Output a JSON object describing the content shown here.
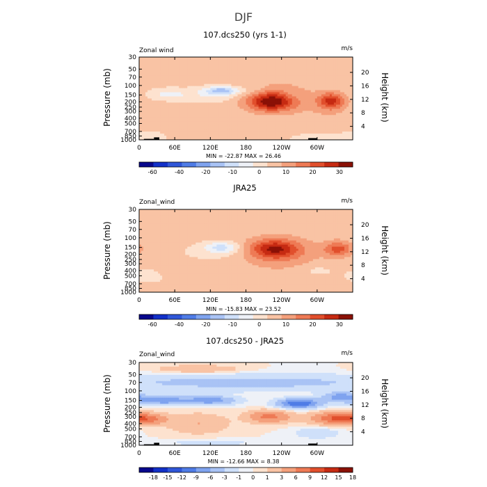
{
  "suptitle": "DJF",
  "colors": {
    "standard": [
      "#08088c",
      "#1230c8",
      "#2f56d8",
      "#4f7ce6",
      "#7fa3ef",
      "#a9c3f5",
      "#cfe0fa",
      "#eef1f7",
      "#fde2cf",
      "#f9c3a4",
      "#f4a07c",
      "#ee7a55",
      "#e14f2c",
      "#c62a12",
      "#8a1106"
    ],
    "diff": [
      "#08088c",
      "#1230c8",
      "#2f56d8",
      "#4f7ce6",
      "#7fa3ef",
      "#a9c3f5",
      "#cfe0fa",
      "#eef1f7",
      "#fde2cf",
      "#f9c3a4",
      "#f4a07c",
      "#ee7a55",
      "#e14f2c",
      "#c62a12",
      "#8a1106"
    ],
    "topo": "#000000",
    "contour_line": "#ffffff"
  },
  "chart_data": [
    {
      "type": "heatmap",
      "title": "107.dcs250 (yrs 1-1)",
      "left_label": "Zonal wind",
      "units": "m/s",
      "ylabel": "Pressure (mb)",
      "ylabel_right": "Height (km)",
      "x_ticks": [
        "0",
        "60E",
        "120E",
        "180",
        "120W",
        "60W"
      ],
      "x_tick_lon": [
        0,
        60,
        120,
        180,
        240,
        300
      ],
      "xlim": [
        0,
        360
      ],
      "p_ticks": [
        30,
        50,
        70,
        100,
        150,
        200,
        250,
        300,
        400,
        500,
        700,
        850,
        1000
      ],
      "ylim_mb": [
        30,
        1000
      ],
      "z_ticks": [
        4,
        8,
        12,
        16,
        20
      ],
      "stats": "MIN = -22.87   MAX =  26.46",
      "levels": [
        -60,
        -40,
        -20,
        -10,
        0,
        10,
        20,
        30
      ],
      "bounds": [
        -70,
        -60,
        -50,
        -40,
        -30,
        -20,
        -15,
        -10,
        -5,
        0,
        5,
        10,
        15,
        20,
        25,
        30
      ],
      "colorbar_labels": [
        "-60",
        "-40",
        "-20",
        "-10",
        "0",
        "10",
        "20",
        "30"
      ],
      "base": 1.5,
      "blobs": [
        {
          "lon": 223,
          "p": 200,
          "amp": 24,
          "slon": 27,
          "slog": 0.27
        },
        {
          "lon": 236,
          "p": 160,
          "amp": 6,
          "slon": 45,
          "slog": 0.5
        },
        {
          "lon": 324,
          "p": 190,
          "amp": 19,
          "slon": 16,
          "slog": 0.24
        },
        {
          "lon": 318,
          "p": 280,
          "amp": 3,
          "slon": 25,
          "slog": 0.3
        },
        {
          "lon": 140,
          "p": 125,
          "amp": -18,
          "slon": 20,
          "slog": 0.12
        },
        {
          "lon": 120,
          "p": 150,
          "amp": -6,
          "slon": 35,
          "slog": 0.22
        },
        {
          "lon": 48,
          "p": 145,
          "amp": -8,
          "slon": 22,
          "slog": 0.16
        },
        {
          "lon": 255,
          "p": 160,
          "amp": -3,
          "slon": 12,
          "slog": 0.2
        },
        {
          "lon": 195,
          "p": 120,
          "amp": -3,
          "slon": 15,
          "slog": 0.2
        },
        {
          "lon": 15,
          "p": 850,
          "amp": -3,
          "slon": 30,
          "slog": 0.2
        },
        {
          "lon": 290,
          "p": 930,
          "amp": -3,
          "slon": 30,
          "slog": 0.15
        },
        {
          "lon": 120,
          "p": 780,
          "amp": 3,
          "slon": 40,
          "slog": 0.1
        }
      ],
      "topography": [
        {
          "lon": [
            8,
            25
          ],
          "p": 960
        },
        {
          "lon": [
            25,
            34
          ],
          "p": 900
        },
        {
          "lon": [
            285,
            300
          ],
          "p": 930
        }
      ]
    },
    {
      "type": "heatmap",
      "title": "JRA25",
      "left_label": "Zonal_wind",
      "units": "m/s",
      "ylabel": "Pressure (mb)",
      "ylabel_right": "Height (km)",
      "x_ticks": [
        "0",
        "60E",
        "120E",
        "180",
        "120W",
        "60W"
      ],
      "x_tick_lon": [
        0,
        60,
        120,
        180,
        240,
        300
      ],
      "xlim": [
        0,
        360
      ],
      "p_ticks": [
        30,
        50,
        70,
        100,
        150,
        200,
        250,
        300,
        400,
        500,
        700,
        850,
        1000
      ],
      "ylim_mb": [
        30,
        1000
      ],
      "z_ticks": [
        4,
        8,
        12,
        16,
        20
      ],
      "stats": "MIN = -15.83   MAX =  23.52",
      "levels": [
        -60,
        -40,
        -20,
        -10,
        0,
        10,
        20,
        30
      ],
      "bounds": [
        -70,
        -60,
        -50,
        -40,
        -30,
        -20,
        -15,
        -10,
        -5,
        0,
        5,
        10,
        15,
        20,
        25,
        30
      ],
      "colorbar_labels": [
        "-60",
        "-40",
        "-20",
        "-10",
        "0",
        "10",
        "20",
        "30"
      ],
      "base": 2,
      "blobs": [
        {
          "lon": 228,
          "p": 160,
          "amp": 20,
          "slon": 30,
          "slog": 0.28
        },
        {
          "lon": 236,
          "p": 200,
          "amp": 6,
          "slon": 48,
          "slog": 0.5
        },
        {
          "lon": 335,
          "p": 160,
          "amp": 15,
          "slon": 17,
          "slog": 0.22
        },
        {
          "lon": 140,
          "p": 150,
          "amp": -12,
          "slon": 20,
          "slog": 0.16
        },
        {
          "lon": 130,
          "p": 180,
          "amp": -4,
          "slon": 45,
          "slog": 0.3
        },
        {
          "lon": 15,
          "p": 500,
          "amp": -4,
          "slon": 25,
          "slog": 0.25
        },
        {
          "lon": 300,
          "p": 400,
          "amp": -4,
          "slon": 20,
          "slog": 0.15
        },
        {
          "lon": 90,
          "p": 420,
          "amp": 2,
          "slon": 40,
          "slog": 0.2
        }
      ],
      "topography": []
    },
    {
      "type": "heatmap",
      "title": "107.dcs250 - JRA25",
      "left_label": "Zonal_wind",
      "units": "m/s",
      "ylabel": "Pressure (mb)",
      "ylabel_right": "Height (km)",
      "x_ticks": [
        "0",
        "60E",
        "120E",
        "180",
        "120W",
        "60W"
      ],
      "x_tick_lon": [
        0,
        60,
        120,
        180,
        240,
        300
      ],
      "xlim": [
        0,
        360
      ],
      "p_ticks": [
        30,
        50,
        70,
        100,
        150,
        200,
        250,
        300,
        400,
        500,
        700,
        850,
        1000
      ],
      "ylim_mb": [
        30,
        1000
      ],
      "z_ticks": [
        4,
        8,
        12,
        16,
        20
      ],
      "stats": "MIN = -12.66   MAX =   8.38",
      "levels": [
        -18,
        -15,
        -12,
        -9,
        -6,
        -3,
        -1,
        0,
        1,
        3,
        6,
        9,
        12,
        15,
        18
      ],
      "bounds": [
        -21,
        -18,
        -15,
        -12,
        -9,
        -6,
        -3,
        -1,
        0,
        1,
        3,
        6,
        9,
        12,
        15,
        18
      ],
      "colorbar_labels": [
        "-18",
        "-15",
        "-12",
        "-9",
        "-6",
        "-3",
        "-1",
        "0",
        "1",
        "3",
        "6",
        "9",
        "12",
        "15",
        "18"
      ],
      "base": 0,
      "blobs": [
        {
          "lon": 180,
          "p": 70,
          "amp": -4,
          "slon": 200,
          "slog": 0.25
        },
        {
          "lon": 40,
          "p": 150,
          "amp": -8,
          "slon": 30,
          "slog": 0.13
        },
        {
          "lon": 120,
          "p": 150,
          "amp": -8,
          "slon": 30,
          "slog": 0.13
        },
        {
          "lon": 270,
          "p": 170,
          "amp": -12,
          "slon": 25,
          "slog": 0.14
        },
        {
          "lon": 340,
          "p": 130,
          "amp": -8,
          "slon": 20,
          "slog": 0.14
        },
        {
          "lon": 10,
          "p": 330,
          "amp": 7,
          "slon": 25,
          "slog": 0.16
        },
        {
          "lon": 220,
          "p": 300,
          "amp": 7,
          "slon": 25,
          "slog": 0.18
        },
        {
          "lon": 330,
          "p": 320,
          "amp": 8,
          "slon": 28,
          "slog": 0.18
        },
        {
          "lon": 100,
          "p": 400,
          "amp": 3,
          "slon": 35,
          "slog": 0.3
        },
        {
          "lon": 120,
          "p": 900,
          "amp": -2,
          "slon": 50,
          "slog": 0.1
        },
        {
          "lon": 300,
          "p": 600,
          "amp": -3,
          "slon": 25,
          "slog": 0.15
        },
        {
          "lon": 100,
          "p": 40,
          "amp": 3,
          "slon": 50,
          "slog": 0.12
        }
      ],
      "topography": [
        {
          "lon": [
            8,
            25
          ],
          "p": 960
        },
        {
          "lon": [
            25,
            34
          ],
          "p": 900
        },
        {
          "lon": [
            285,
            300
          ],
          "p": 930
        }
      ]
    }
  ]
}
